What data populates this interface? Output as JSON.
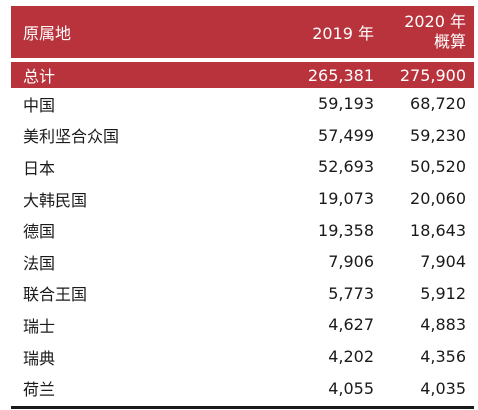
{
  "table": {
    "header": {
      "origin": "原属地",
      "year1": "2019 年",
      "year2_line1": "2020 年",
      "year2_line2": "概算"
    },
    "total": {
      "name": "总计",
      "v2019": "265,381",
      "v2020": "275,900"
    },
    "rows": [
      {
        "name": "中国",
        "v2019": "59,193",
        "v2020": "68,720"
      },
      {
        "name": "美利坚合众国",
        "v2019": "57,499",
        "v2020": "59,230"
      },
      {
        "name": "日本",
        "v2019": "52,693",
        "v2020": "50,520"
      },
      {
        "name": "大韩民国",
        "v2019": "19,073",
        "v2020": "20,060"
      },
      {
        "name": "德国",
        "v2019": "19,358",
        "v2020": "18,643"
      },
      {
        "name": "法国",
        "v2019": "7,906",
        "v2020": "7,904"
      },
      {
        "name": "联合王国",
        "v2019": "5,773",
        "v2020": "5,912"
      },
      {
        "name": "瑞士",
        "v2019": "4,627",
        "v2020": "4,883"
      },
      {
        "name": "瑞典",
        "v2019": "4,202",
        "v2020": "4,356"
      },
      {
        "name": "荷兰",
        "v2019": "4,055",
        "v2020": "4,035"
      }
    ],
    "colors": {
      "header_bg": "#b8333c",
      "header_text": "#ffffff",
      "body_text": "#1a1a1a"
    }
  }
}
